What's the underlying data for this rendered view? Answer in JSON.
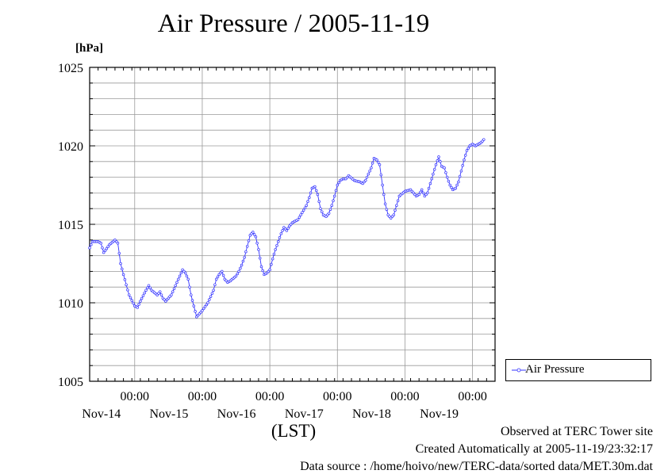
{
  "chart_data": {
    "type": "line",
    "title": "Air Pressure / 2005-11-19",
    "ylabel": "[hPa]",
    "xlabel": "(LST)",
    "ylim": [
      1005,
      1025
    ],
    "y_ticks": [
      "1005",
      "1010",
      "1015",
      "1020",
      "1025"
    ],
    "xlim_hours": [
      -16,
      128
    ],
    "x_ticks": [
      {
        "time": "00:00",
        "day": "Nov-14"
      },
      {
        "time": "00:00",
        "day": "Nov-15"
      },
      {
        "time": "00:00",
        "day": "Nov-16"
      },
      {
        "time": "00:00",
        "day": "Nov-17"
      },
      {
        "time": "00:00",
        "day": "Nov-18"
      },
      {
        "time": "00:00",
        "day": "Nov-19"
      }
    ],
    "grid": true,
    "legend": "right",
    "series": [
      {
        "name": "Air Pressure",
        "color": "#3333ff",
        "keypoints": [
          [
            -16,
            1013.5
          ],
          [
            -15,
            1013.9
          ],
          [
            -13,
            1013.9
          ],
          [
            -12,
            1013.8
          ],
          [
            -11,
            1013.2
          ],
          [
            -9,
            1013.7
          ],
          [
            -7,
            1014.0
          ],
          [
            -6,
            1013.8
          ],
          [
            -5,
            1012.5
          ],
          [
            -4,
            1011.8
          ],
          [
            -2,
            1010.5
          ],
          [
            0,
            1009.8
          ],
          [
            1,
            1009.7
          ],
          [
            2,
            1010.1
          ],
          [
            4,
            1010.8
          ],
          [
            5,
            1011.1
          ],
          [
            6,
            1010.8
          ],
          [
            8,
            1010.5
          ],
          [
            9,
            1010.7
          ],
          [
            10,
            1010.3
          ],
          [
            11,
            1010.1
          ],
          [
            13,
            1010.5
          ],
          [
            15,
            1011.3
          ],
          [
            16,
            1011.7
          ],
          [
            17,
            1012.1
          ],
          [
            18,
            1011.9
          ],
          [
            19,
            1011.5
          ],
          [
            20,
            1010.5
          ],
          [
            22,
            1009.1
          ],
          [
            23,
            1009.3
          ],
          [
            24,
            1009.5
          ],
          [
            26,
            1010.0
          ],
          [
            28,
            1010.8
          ],
          [
            29,
            1011.5
          ],
          [
            30,
            1011.8
          ],
          [
            31,
            1012.0
          ],
          [
            32,
            1011.5
          ],
          [
            33,
            1011.3
          ],
          [
            34,
            1011.4
          ],
          [
            36,
            1011.7
          ],
          [
            37,
            1012.0
          ],
          [
            38,
            1012.4
          ],
          [
            39,
            1012.9
          ],
          [
            40,
            1013.6
          ],
          [
            41,
            1014.3
          ],
          [
            42,
            1014.5
          ],
          [
            43,
            1014.2
          ],
          [
            44,
            1013.4
          ],
          [
            45,
            1012.3
          ],
          [
            46,
            1011.8
          ],
          [
            47,
            1011.9
          ],
          [
            48,
            1012.1
          ],
          [
            49,
            1012.8
          ],
          [
            50,
            1013.4
          ],
          [
            51,
            1013.9
          ],
          [
            52,
            1014.4
          ],
          [
            53,
            1014.8
          ],
          [
            54,
            1014.6
          ],
          [
            55,
            1014.9
          ],
          [
            56,
            1015.1
          ],
          [
            58,
            1015.3
          ],
          [
            59,
            1015.6
          ],
          [
            60,
            1015.9
          ],
          [
            61,
            1016.2
          ],
          [
            62,
            1016.7
          ],
          [
            63,
            1017.3
          ],
          [
            64,
            1017.4
          ],
          [
            65,
            1016.9
          ],
          [
            66,
            1016.0
          ],
          [
            67,
            1015.6
          ],
          [
            68,
            1015.5
          ],
          [
            69,
            1015.7
          ],
          [
            70,
            1016.2
          ],
          [
            71,
            1016.8
          ],
          [
            72,
            1017.5
          ],
          [
            73,
            1017.8
          ],
          [
            74,
            1017.9
          ],
          [
            75,
            1017.9
          ],
          [
            76,
            1018.1
          ],
          [
            78,
            1017.8
          ],
          [
            80,
            1017.7
          ],
          [
            81,
            1017.6
          ],
          [
            82,
            1017.8
          ],
          [
            83,
            1018.2
          ],
          [
            84,
            1018.6
          ],
          [
            85,
            1019.2
          ],
          [
            86,
            1019.1
          ],
          [
            87,
            1018.8
          ],
          [
            88,
            1017.5
          ],
          [
            89,
            1016.3
          ],
          [
            90,
            1015.6
          ],
          [
            91,
            1015.4
          ],
          [
            92,
            1015.6
          ],
          [
            93,
            1016.2
          ],
          [
            94,
            1016.8
          ],
          [
            96,
            1017.1
          ],
          [
            98,
            1017.2
          ],
          [
            100,
            1016.8
          ],
          [
            101,
            1016.9
          ],
          [
            102,
            1017.2
          ],
          [
            103,
            1016.8
          ],
          [
            104,
            1017.0
          ],
          [
            105,
            1017.6
          ],
          [
            106,
            1018.2
          ],
          [
            107,
            1018.8
          ],
          [
            108,
            1019.3
          ],
          [
            109,
            1018.7
          ],
          [
            110,
            1018.6
          ],
          [
            111,
            1018.0
          ],
          [
            112,
            1017.5
          ],
          [
            113,
            1017.2
          ],
          [
            114,
            1017.3
          ],
          [
            115,
            1017.7
          ],
          [
            116,
            1018.4
          ],
          [
            117,
            1019.1
          ],
          [
            118,
            1019.7
          ],
          [
            119,
            1020.0
          ],
          [
            120,
            1020.1
          ],
          [
            121,
            1020.0
          ],
          [
            122,
            1020.1
          ],
          [
            123,
            1020.2
          ],
          [
            124,
            1020.4
          ]
        ]
      }
    ]
  },
  "footer": {
    "line1": "Observed at TERC Tower site",
    "line2": "Created Automatically at 2005-11-19/23:32:17",
    "line3": "Data source : /home/hoivo/new/TERC-data/sorted  data/MET.30m.dat"
  },
  "colors": {
    "series": "#3333ff",
    "grid": "#9a9a9a",
    "axis": "#000000"
  }
}
